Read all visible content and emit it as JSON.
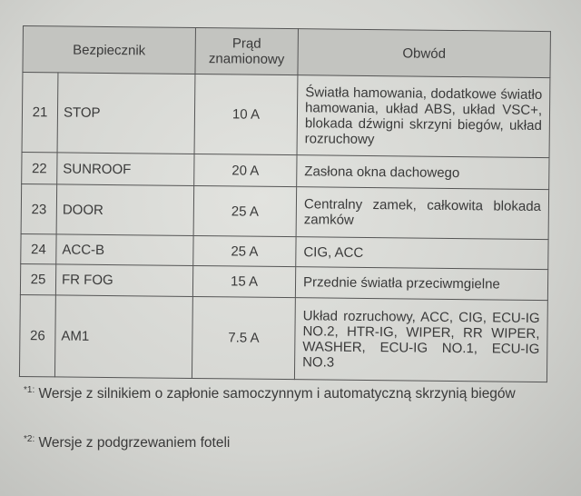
{
  "table": {
    "headers": [
      "Bezpiecznik",
      "Prąd znamionowy",
      "Obwód"
    ],
    "rows": [
      {
        "num": "21",
        "name": "STOP",
        "current": "10 A",
        "circuit": "Światła hamowania, dodatkowe światło hamowania, układ ABS, układ VSC+, blokada dźwigni skrzyni biegów, układ rozruchowy"
      },
      {
        "num": "22",
        "name": "SUNROOF",
        "current": "20 A",
        "circuit": "Zasłona okna dachowego"
      },
      {
        "num": "23",
        "name": "DOOR",
        "current": "25 A",
        "circuit": "Centralny zamek, całkowita blokada zamków"
      },
      {
        "num": "24",
        "name": "ACC-B",
        "current": "25 A",
        "circuit": "CIG, ACC"
      },
      {
        "num": "25",
        "name": "FR FOG",
        "current": "15 A",
        "circuit": "Przednie światła przeciwmgielne"
      },
      {
        "num": "26",
        "name": "AM1",
        "current": "7.5 A",
        "circuit": "Układ rozruchowy, ACC, CIG, ECU-IG NO.2, HTR-IG, WIPER, RR WIPER, WASHER, ECU-IG NO.1, ECU-IG NO.3"
      }
    ]
  },
  "footnotes": [
    {
      "mark": "*1:",
      "text": "Wersje z silnikiem o zapłonie samoczynnym i automatyczną skrzynią biegów"
    },
    {
      "mark": "*2:",
      "text": "Wersje z podgrzewaniem foteli"
    }
  ]
}
